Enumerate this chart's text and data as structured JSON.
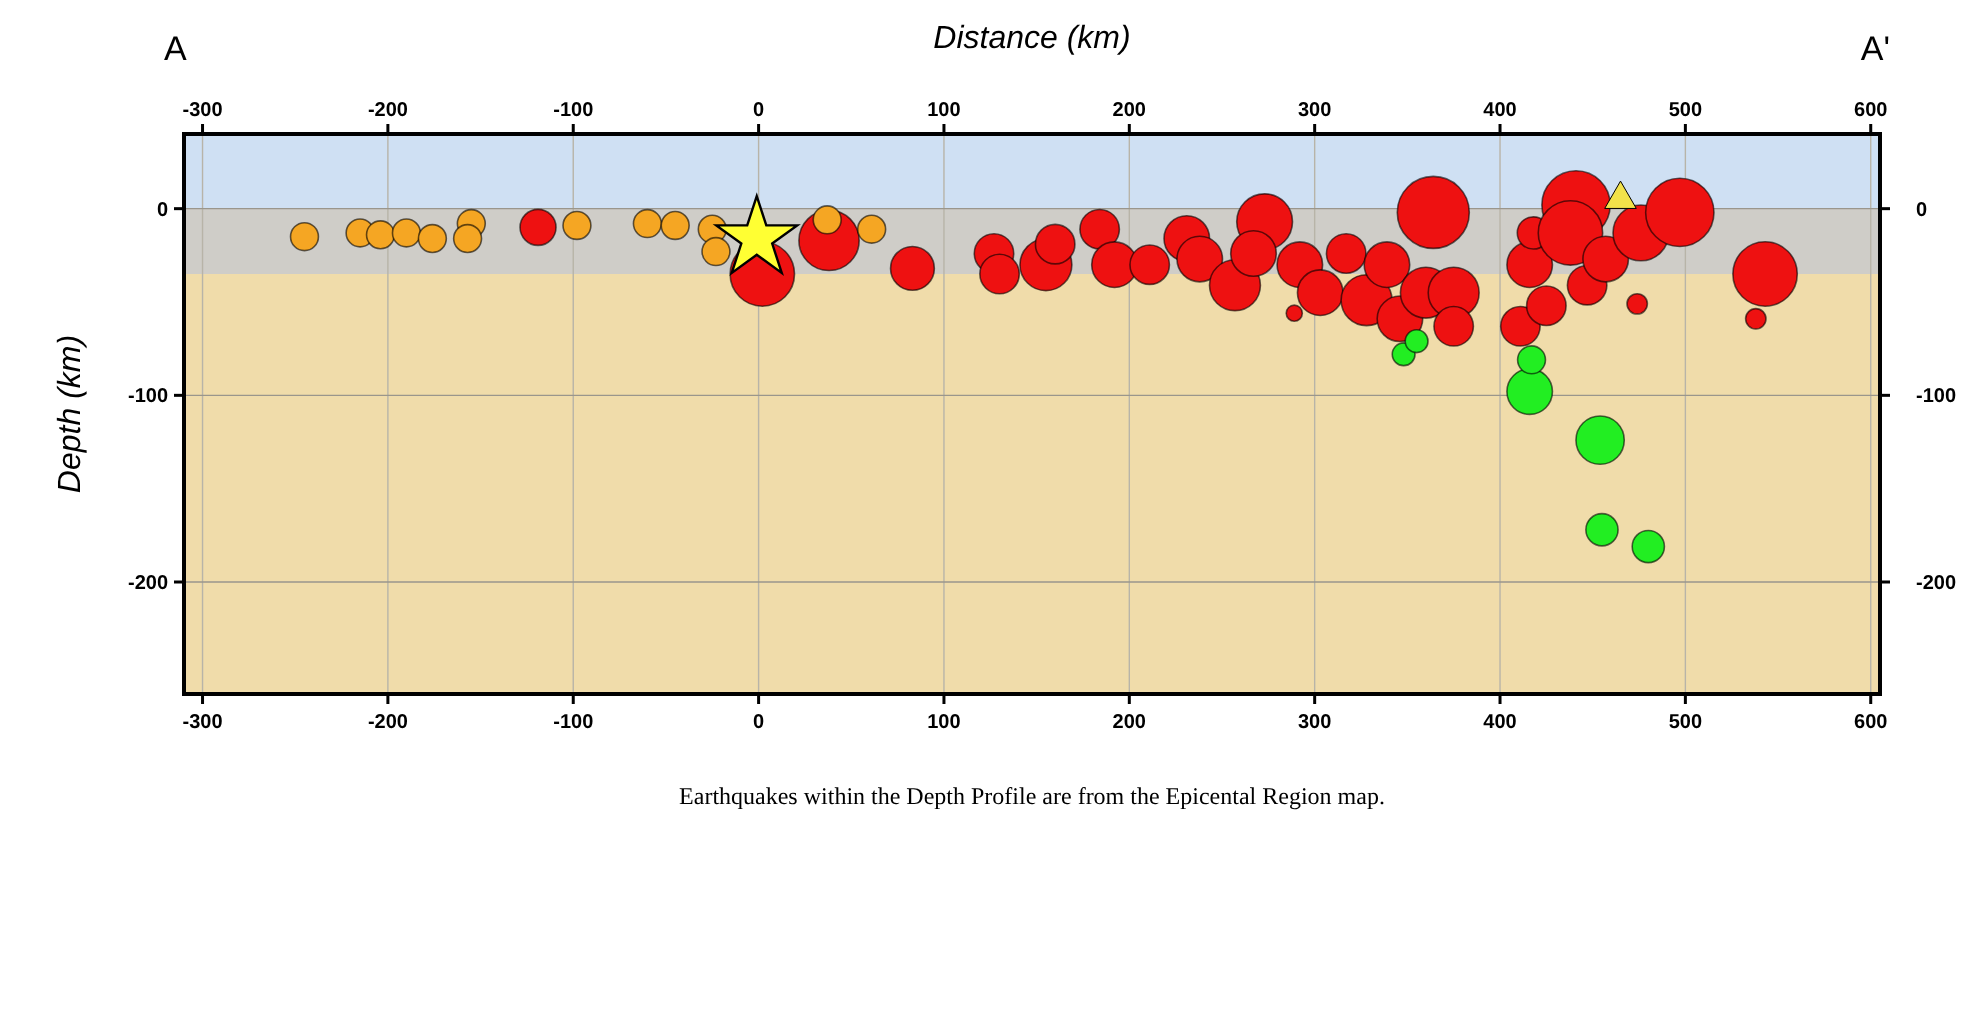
{
  "chart_data": {
    "type": "bubble",
    "xlabel": "Distance (km)",
    "ylabel": "Depth (km)",
    "annotations": [
      "A",
      "A'",
      "Earthquakes within the Depth Profile are from the Epicental Region map."
    ],
    "xlim": [
      -310,
      605
    ],
    "xticks": [
      -300,
      -200,
      -100,
      0,
      100,
      200,
      300,
      400,
      500,
      600
    ],
    "x2lim": [
      -310,
      605
    ],
    "x2ticks": [
      -300,
      -200,
      -100,
      0,
      100,
      200,
      300,
      400,
      500,
      600
    ],
    "ylim": [
      -260,
      40
    ],
    "yticks": [
      0,
      -100,
      -200
    ],
    "y2lim": [
      -260,
      40
    ],
    "y2ticks": [
      0,
      -100,
      -200
    ],
    "grid": true,
    "bands": [
      {
        "axis": "y",
        "from": 40,
        "to": 0,
        "color": "#cfe0f3"
      },
      {
        "axis": "y",
        "from": 0,
        "to": -35,
        "color": "#cfcdc8"
      },
      {
        "axis": "y",
        "from": -35,
        "to": -260,
        "color": "#f0dcaa"
      }
    ],
    "series": [
      {
        "color": "#ee1111",
        "x": [
          -119,
          2,
          38,
          83,
          127,
          130,
          155,
          160,
          184,
          192,
          211,
          231,
          238,
          257,
          273,
          267,
          289,
          292,
          303,
          317,
          328,
          339,
          346,
          360,
          364,
          375,
          375,
          411,
          416,
          418,
          425,
          441,
          438,
          447,
          457,
          474,
          476,
          497,
          543,
          538
        ],
        "values": [
          -10,
          -35,
          -17,
          -32,
          -24,
          -35,
          -30,
          -19,
          -11,
          -30,
          -30,
          -16,
          -27,
          -41,
          -7,
          -24,
          -56,
          -30,
          -45,
          -24,
          -49,
          -30,
          -59,
          -45,
          -2,
          -45,
          -63,
          -63,
          -30,
          -13,
          -52,
          2,
          -13,
          -41,
          -27,
          -51,
          -13,
          -2,
          -35,
          -59
        ],
        "sizes": [
          0.25,
          0.8,
          0.7,
          0.37,
          0.3,
          0.3,
          0.52,
          0.3,
          0.3,
          0.4,
          0.3,
          0.4,
          0.4,
          0.5,
          0.6,
          0.4,
          0.05,
          0.4,
          0.4,
          0.3,
          0.5,
          0.4,
          0.4,
          0.5,
          1,
          0.5,
          0.3,
          0.3,
          0.4,
          0.2,
          0.3,
          0.9,
          0.8,
          0.3,
          0.4,
          0.08,
          0.6,
          0.9,
          0.8,
          0.08
        ]
      },
      {
        "color": "#f5a623",
        "x": [
          -245,
          -215,
          -204,
          -190,
          -176,
          -155,
          -157,
          -98,
          -60,
          -45,
          -25,
          -23,
          37,
          61
        ],
        "values": [
          -15,
          -13,
          -14,
          -13,
          -16,
          -8,
          -16,
          -9,
          -8,
          -9,
          -11,
          -23,
          -6,
          -11
        ],
        "sizes": [
          0.15,
          0.15,
          0.15,
          0.15,
          0.15,
          0.15,
          0.15,
          0.15,
          0.15,
          0.15,
          0.15,
          0.15,
          0.15,
          0.15
        ]
      },
      {
        "color": "#22ee22",
        "x": [
          348,
          355,
          416,
          417,
          454,
          455,
          480
        ],
        "values": [
          -78,
          -71,
          -98,
          -81,
          -124,
          -172,
          -181
        ],
        "sizes": [
          0.1,
          0.1,
          0.4,
          0.15,
          0.45,
          0.2,
          0.2
        ]
      },
      {
        "color": "#ffff33",
        "type": "scatter",
        "marker": "star",
        "x": [
          -1
        ],
        "values": [
          -16
        ]
      },
      {
        "color": "#f2e24a",
        "type": "scatter",
        "marker": "triangle",
        "x": [
          465
        ],
        "values": [
          5
        ]
      }
    ]
  }
}
